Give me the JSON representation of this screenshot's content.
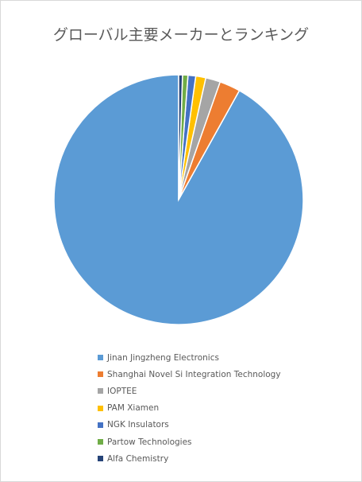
{
  "chart_data": {
    "type": "pie",
    "title": "グローバル主要メーカーとランキング",
    "legend_position": "bottom",
    "categories": [
      "Jinan Jingzheng Electronics",
      "Shanghai Novel Si Integration Technology",
      "IOPTEE",
      "PAM Xiamen",
      "NGK Insulators",
      "Partow Technologies",
      "Alfa Chemistry"
    ],
    "values": [
      91.9,
      2.7,
      1.9,
      1.3,
      1.0,
      0.7,
      0.5
    ],
    "colors": [
      "#5b9bd5",
      "#ed7d31",
      "#a5a5a5",
      "#ffc000",
      "#4472c4",
      "#70ad47",
      "#264478"
    ]
  }
}
